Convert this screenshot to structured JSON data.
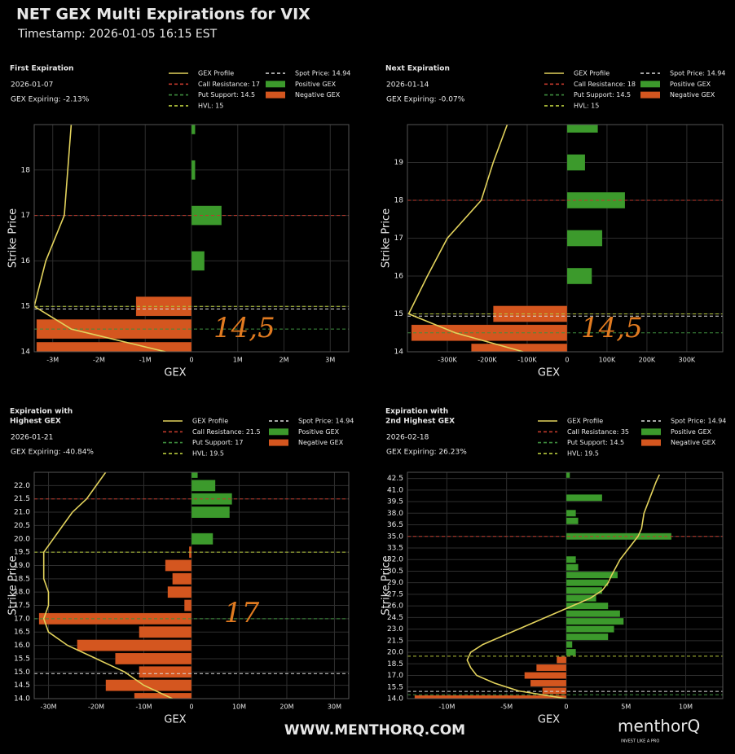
{
  "header": {
    "title": "NET GEX Multi Expirations for VIX",
    "timestamp": "Timestamp: 2026-01-05 16:15 EST"
  },
  "footer": {
    "url": "WWW.MENTHORQ.COM",
    "brand": "menthorQ",
    "tagline": "INVEST LIKE A PRO"
  },
  "chart_data": [
    {
      "type": "bar",
      "orientation": "horizontal",
      "title": [
        "First Expiration"
      ],
      "date": "2026-01-07",
      "gex_expiring": "GEX Expiring: -2.13%",
      "x_label": "GEX",
      "y_label": "Strike Price",
      "grid": true,
      "annotation": "14,5",
      "xlim": [
        -3400000,
        3400000
      ],
      "xticks": [
        {
          "value": -3000000,
          "label": "-3M"
        },
        {
          "value": -2000000,
          "label": "-2M"
        },
        {
          "value": -1000000,
          "label": "-1M"
        },
        0,
        {
          "value": 1000000,
          "label": "1M"
        },
        {
          "value": 2000000,
          "label": "2M"
        },
        {
          "value": 3000000,
          "label": "3M"
        }
      ],
      "ylim": [
        14,
        19
      ],
      "yticks": [
        14,
        15,
        16,
        17,
        18
      ],
      "strikes": [
        14,
        14.5,
        15,
        16,
        17,
        18,
        19
      ],
      "series": [
        {
          "name": "Positive GEX",
          "color": "#3c9a2c",
          "values": [
            null,
            null,
            null,
            280000,
            650000,
            80000,
            80000
          ]
        },
        {
          "name": "Negative GEX",
          "color": "#d4561f",
          "values": [
            -3350000,
            -3350000,
            -1200000,
            null,
            null,
            null,
            null
          ]
        }
      ],
      "profile": {
        "name": "GEX Profile",
        "color": "#e2d25c",
        "x": [
          14,
          14.5,
          15,
          16,
          17,
          19
        ],
        "values": [
          -560000,
          -2600000,
          -3400000,
          -3150000,
          -2750000,
          -2600000
        ]
      },
      "levels": [
        {
          "name": "Call Resistance: 17",
          "value": 17,
          "color": "#c0392b"
        },
        {
          "name": "Put Support: 14.5",
          "value": 14.5,
          "color": "#3f8f3f"
        },
        {
          "name": "HVL: 15",
          "value": 15,
          "color": "#b6c83c"
        },
        {
          "name": "Spot Price: 14.94",
          "value": 14.94,
          "color": "#dddddd"
        }
      ]
    },
    {
      "type": "bar",
      "orientation": "horizontal",
      "title": [
        "Next Expiration"
      ],
      "date": "2026-01-14",
      "gex_expiring": "GEX Expiring: -0.07%",
      "x_label": "GEX",
      "y_label": "Strike Price",
      "grid": true,
      "annotation": "14,5",
      "xlim": [
        -400000,
        390000
      ],
      "xticks": [
        {
          "value": -300000,
          "label": "-300K"
        },
        {
          "value": -200000,
          "label": "-200K"
        },
        {
          "value": -100000,
          "label": "-100K"
        },
        0,
        {
          "value": 100000,
          "label": "100K"
        },
        {
          "value": 200000,
          "label": "200K"
        },
        {
          "value": 300000,
          "label": "300K"
        }
      ],
      "ylim": [
        14,
        20
      ],
      "yticks": [
        14,
        15,
        16,
        17,
        18,
        19
      ],
      "strikes": [
        14,
        14.5,
        15,
        16,
        17,
        18,
        19,
        20
      ],
      "series": [
        {
          "name": "Positive GEX",
          "color": "#3c9a2c",
          "values": [
            null,
            null,
            null,
            62000,
            88000,
            145000,
            45000,
            77000
          ]
        },
        {
          "name": "Negative GEX",
          "color": "#d4561f",
          "values": [
            -240000,
            -390000,
            -185000,
            null,
            null,
            null,
            null,
            null
          ]
        }
      ],
      "profile": {
        "name": "GEX Profile",
        "color": "#e2d25c",
        "x": [
          14,
          14.5,
          15,
          16,
          17,
          18,
          19,
          20
        ],
        "values": [
          -110000,
          -280000,
          -397000,
          -350000,
          -300000,
          -215000,
          -185000,
          -150000
        ]
      },
      "levels": [
        {
          "name": "Call Resistance: 18",
          "value": 18,
          "color": "#c0392b"
        },
        {
          "name": "Put Support: 14.5",
          "value": 14.5,
          "color": "#3f8f3f"
        },
        {
          "name": "HVL: 15",
          "value": 15,
          "color": "#b6c83c"
        },
        {
          "name": "Spot Price: 14.94",
          "value": 14.94,
          "color": "#dddddd"
        }
      ]
    },
    {
      "type": "bar",
      "orientation": "horizontal",
      "title": [
        "Expiration with",
        "Highest GEX"
      ],
      "date": "2026-01-21",
      "gex_expiring": "GEX Expiring: -40.84%",
      "x_label": "GEX",
      "y_label": "Strike Price",
      "grid": true,
      "annotation": "17",
      "xlim": [
        -33000000,
        33000000
      ],
      "xticks": [
        {
          "value": -30000000,
          "label": "-30M"
        },
        {
          "value": -20000000,
          "label": "-20M"
        },
        {
          "value": -10000000,
          "label": "-10M"
        },
        0,
        {
          "value": 10000000,
          "label": "10M"
        },
        {
          "value": 20000000,
          "label": "20M"
        },
        {
          "value": 30000000,
          "label": "30M"
        }
      ],
      "ylim": [
        14,
        22.5
      ],
      "yticks": [
        {
          "value": 14,
          "label": "14.0"
        },
        14.5,
        {
          "value": 15,
          "label": "15.0"
        },
        15.5,
        {
          "value": 16,
          "label": "16.0"
        },
        16.5,
        {
          "value": 17,
          "label": "17.0"
        },
        17.5,
        {
          "value": 18,
          "label": "18.0"
        },
        18.5,
        {
          "value": 19,
          "label": "19.0"
        },
        19.5,
        {
          "value": 20,
          "label": "20.0"
        },
        20.5,
        {
          "value": 21,
          "label": "21.0"
        },
        21.5,
        {
          "value": 22,
          "label": "22.0"
        }
      ],
      "strikes": [
        14,
        14.5,
        15,
        15.5,
        16,
        16.5,
        17,
        17.5,
        18,
        18.5,
        19,
        19.5,
        20,
        21,
        21.5,
        22,
        22.5
      ],
      "series": [
        {
          "name": "Positive GEX",
          "color": "#3c9a2c",
          "values": [
            null,
            null,
            null,
            null,
            null,
            null,
            null,
            null,
            null,
            null,
            null,
            null,
            4500000,
            8000000,
            8500000,
            5000000,
            1300000
          ]
        },
        {
          "name": "Negative GEX",
          "color": "#d4561f",
          "values": [
            -12000000,
            -18000000,
            -11000000,
            -16000000,
            -24000000,
            -11000000,
            -32000000,
            -1500000,
            -5000000,
            -4000000,
            -5500000,
            -500000,
            null,
            null,
            null,
            null,
            null
          ]
        }
      ],
      "profile": {
        "name": "GEX Profile",
        "color": "#e2d25c",
        "x": [
          14,
          14.5,
          15,
          15.5,
          16,
          16.5,
          17,
          17.5,
          18,
          18.5,
          19,
          19.5,
          20,
          20.5,
          21,
          21.5,
          22,
          22.5
        ],
        "values": [
          -4000000,
          -10000000,
          -14000000,
          -20000000,
          -26000000,
          -30000000,
          -31000000,
          -30000000,
          -30000000,
          -31000000,
          -31000000,
          -31000000,
          -29000000,
          -27000000,
          -25000000,
          -22000000,
          -20000000,
          -18000000
        ]
      },
      "levels": [
        {
          "name": "Call Resistance: 21.5",
          "value": 21.5,
          "color": "#c0392b"
        },
        {
          "name": "Put Support: 17",
          "value": 17,
          "color": "#3f8f3f"
        },
        {
          "name": "HVL: 19.5",
          "value": 19.5,
          "color": "#b6c83c"
        },
        {
          "name": "Spot Price: 14.94",
          "value": 14.94,
          "color": "#dddddd"
        }
      ]
    },
    {
      "type": "bar",
      "orientation": "horizontal",
      "title": [
        "Expiration with",
        "2nd Highest GEX"
      ],
      "date": "2026-02-18",
      "gex_expiring": "GEX Expiring: 26.23%",
      "x_label": "GEX",
      "y_label": "Strike Price",
      "grid": true,
      "xlim": [
        -13300000,
        13100000
      ],
      "xticks": [
        {
          "value": -10000000,
          "label": "-10M"
        },
        {
          "value": -5000000,
          "label": "-5M"
        },
        0,
        {
          "value": 5000000,
          "label": "5M"
        },
        {
          "value": 10000000,
          "label": "10M"
        }
      ],
      "ylim": [
        14,
        43.3
      ],
      "yticks": [
        {
          "value": 14,
          "label": "14.0"
        },
        15.5,
        {
          "value": 17,
          "label": "17.0"
        },
        18.5,
        {
          "value": 20,
          "label": "20.0"
        },
        21.5,
        {
          "value": 23,
          "label": "23.0"
        },
        24.5,
        {
          "value": 26,
          "label": "26.0"
        },
        27.5,
        {
          "value": 29,
          "label": "29.0"
        },
        30.5,
        {
          "value": 32,
          "label": "32.0"
        },
        33.5,
        {
          "value": 35,
          "label": "35.0"
        },
        36.5,
        {
          "value": 38,
          "label": "38.0"
        },
        39.5,
        {
          "value": 41,
          "label": "41.0"
        },
        42.5
      ],
      "strikes": [
        14,
        15,
        16,
        17,
        18,
        19,
        20,
        21,
        22,
        23,
        24,
        25,
        26,
        27,
        28,
        29,
        30,
        31,
        32,
        35,
        37,
        38,
        40,
        43
      ],
      "series": [
        {
          "name": "Positive GEX",
          "color": "#3c9a2c",
          "values": [
            null,
            null,
            null,
            null,
            null,
            null,
            800000,
            500000,
            3500000,
            4000000,
            4800000,
            4500000,
            3500000,
            2500000,
            3000000,
            3500000,
            4300000,
            1000000,
            800000,
            8800000,
            1000000,
            800000,
            3000000,
            300000
          ]
        },
        {
          "name": "Negative GEX",
          "color": "#d4561f",
          "values": [
            -12700000,
            -2000000,
            -3000000,
            -3500000,
            -2500000,
            -800000,
            null,
            null,
            null,
            null,
            null,
            null,
            null,
            null,
            null,
            null,
            null,
            null,
            null,
            null,
            null,
            null,
            null,
            null
          ]
        }
      ],
      "profile": {
        "name": "GEX Profile",
        "color": "#e2d25c",
        "x": [
          14,
          15,
          16,
          17,
          18,
          19,
          20,
          21,
          22,
          23,
          24,
          25,
          26,
          27,
          28,
          29,
          30,
          32,
          34,
          35,
          36,
          38,
          40,
          42,
          43
        ],
        "values": [
          0,
          -4000000,
          -6000000,
          -7500000,
          -8000000,
          -8300000,
          -8000000,
          -7000000,
          -5500000,
          -4000000,
          -2500000,
          -1000000,
          500000,
          2000000,
          3000000,
          3500000,
          3800000,
          4500000,
          5500000,
          6000000,
          6300000,
          6500000,
          7000000,
          7500000,
          7800000
        ]
      },
      "levels": [
        {
          "name": "Call Resistance: 35",
          "value": 35,
          "color": "#c0392b"
        },
        {
          "name": "Put Support: 14.5",
          "value": 14.5,
          "color": "#3f8f3f"
        },
        {
          "name": "HVL: 19.5",
          "value": 19.5,
          "color": "#b6c83c"
        },
        {
          "name": "Spot Price: 14.94",
          "value": 14.94,
          "color": "#dddddd"
        }
      ]
    }
  ]
}
